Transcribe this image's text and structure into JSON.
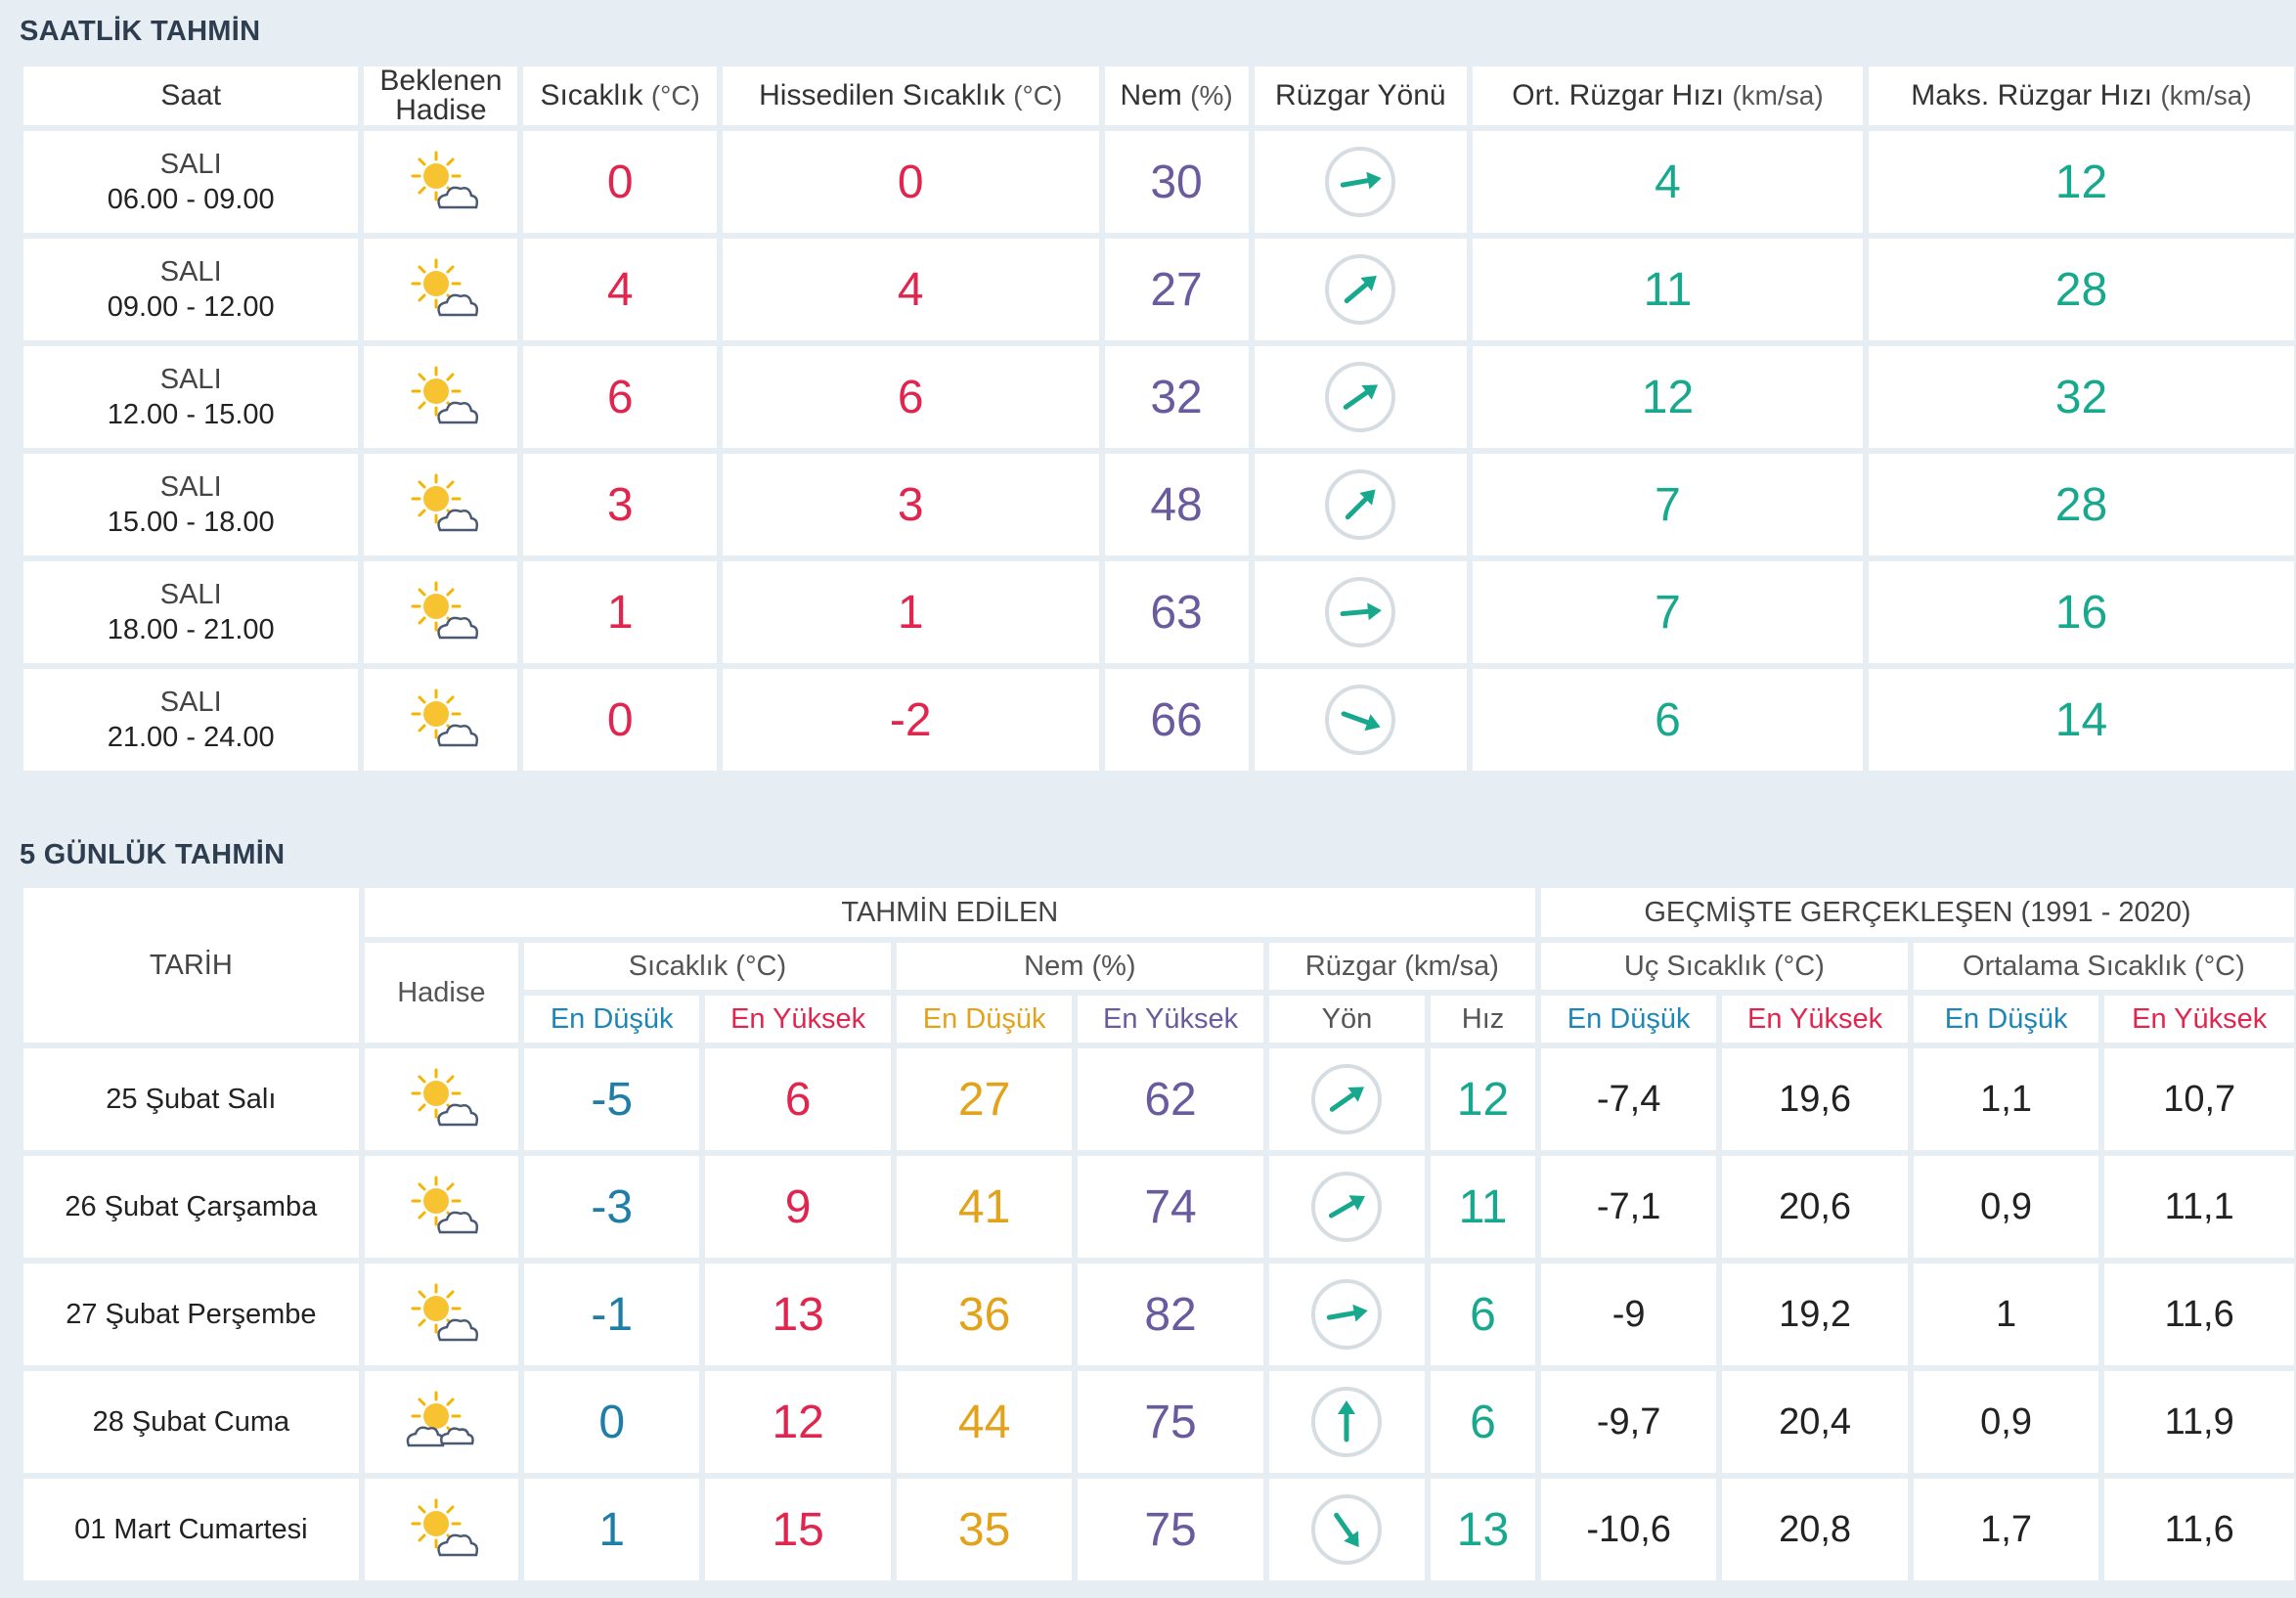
{
  "hourly": {
    "title": "SAATLİK TAHMİN",
    "headers": {
      "saat": "Saat",
      "hadise": "Beklenen Hadise",
      "sicaklik": "Sıcaklık",
      "sicaklik_unit": "(°C)",
      "hissedilen": "Hissedilen Sıcaklık",
      "hissedilen_unit": "(°C)",
      "nem": "Nem",
      "nem_unit": "(%)",
      "yon": "Rüzgar Yönü",
      "ort": "Ort. Rüzgar Hızı",
      "ort_unit": "(km/sa)",
      "maks": "Maks. Rüzgar Hızı",
      "maks_unit": "(km/sa)"
    },
    "rows": [
      {
        "day": "SALI",
        "time": "06.00 - 09.00",
        "icon": "sun-cloud-icon",
        "temp": "0",
        "feels": "0",
        "hum": "30",
        "wind_deg": 80,
        "avg": "4",
        "max": "12"
      },
      {
        "day": "SALI",
        "time": "09.00 - 12.00",
        "icon": "sun-cloud-icon",
        "temp": "4",
        "feels": "4",
        "hum": "27",
        "wind_deg": 50,
        "avg": "11",
        "max": "28"
      },
      {
        "day": "SALI",
        "time": "12.00 - 15.00",
        "icon": "sun-cloud-icon",
        "temp": "6",
        "feels": "6",
        "hum": "32",
        "wind_deg": 55,
        "avg": "12",
        "max": "32"
      },
      {
        "day": "SALI",
        "time": "15.00 - 18.00",
        "icon": "sun-cloud-icon",
        "temp": "3",
        "feels": "3",
        "hum": "48",
        "wind_deg": 45,
        "avg": "7",
        "max": "28"
      },
      {
        "day": "SALI",
        "time": "18.00 - 21.00",
        "icon": "sun-cloud-icon",
        "temp": "1",
        "feels": "1",
        "hum": "63",
        "wind_deg": 85,
        "avg": "7",
        "max": "16"
      },
      {
        "day": "SALI",
        "time": "21.00 - 24.00",
        "icon": "sun-cloud-icon",
        "temp": "0",
        "feels": "-2",
        "hum": "66",
        "wind_deg": 110,
        "avg": "6",
        "max": "14"
      }
    ]
  },
  "daily": {
    "title": "5 GÜNLÜK TAHMİN",
    "headers": {
      "tarih": "TARİH",
      "tahmin": "TAHMİN EDİLEN",
      "gecmis": "GEÇMİŞTE GERÇEKLEŞEN (1991 - 2020)",
      "hadise": "Hadise",
      "sicaklik": "Sıcaklık (°C)",
      "nem": "Nem (%)",
      "ruzgar": "Rüzgar (km/sa)",
      "uc": "Uç Sıcaklık (°C)",
      "ortalama": "Ortalama Sıcaklık (°C)",
      "en_dusuk": "En Düşük",
      "en_yuksek": "En Yüksek",
      "yon": "Yön",
      "hiz": "Hız"
    },
    "rows": [
      {
        "date": "25 Şubat Salı",
        "icon": "sun-cloud-icon",
        "tmin": "-5",
        "tmax": "6",
        "hmin": "27",
        "hmax": "62",
        "wind_deg": 55,
        "speed": "12",
        "uc_min": "-7,4",
        "uc_max": "19,6",
        "ort_min": "1,1",
        "ort_max": "10,7"
      },
      {
        "date": "26 Şubat Çarşamba",
        "icon": "sun-cloud-icon",
        "tmin": "-3",
        "tmax": "9",
        "hmin": "41",
        "hmax": "74",
        "wind_deg": 60,
        "speed": "11",
        "uc_min": "-7,1",
        "uc_max": "20,6",
        "ort_min": "0,9",
        "ort_max": "11,1"
      },
      {
        "date": "27 Şubat Perşembe",
        "icon": "sun-cloud-icon",
        "tmin": "-1",
        "tmax": "13",
        "hmin": "36",
        "hmax": "82",
        "wind_deg": 80,
        "speed": "6",
        "uc_min": "-9",
        "uc_max": "19,2",
        "ort_min": "1",
        "ort_max": "11,6"
      },
      {
        "date": "28 Şubat Cuma",
        "icon": "sun-two-clouds-icon",
        "tmin": "0",
        "tmax": "12",
        "hmin": "44",
        "hmax": "75",
        "wind_deg": 0,
        "speed": "6",
        "uc_min": "-9,7",
        "uc_max": "20,4",
        "ort_min": "0,9",
        "ort_max": "11,9"
      },
      {
        "date": "01 Mart Cumartesi",
        "icon": "sun-cloud-icon",
        "tmin": "1",
        "tmax": "15",
        "hmin": "35",
        "hmax": "75",
        "wind_deg": 145,
        "speed": "13",
        "uc_min": "-10,6",
        "uc_max": "20,8",
        "ort_min": "1,7",
        "ort_max": "11,6"
      }
    ]
  }
}
